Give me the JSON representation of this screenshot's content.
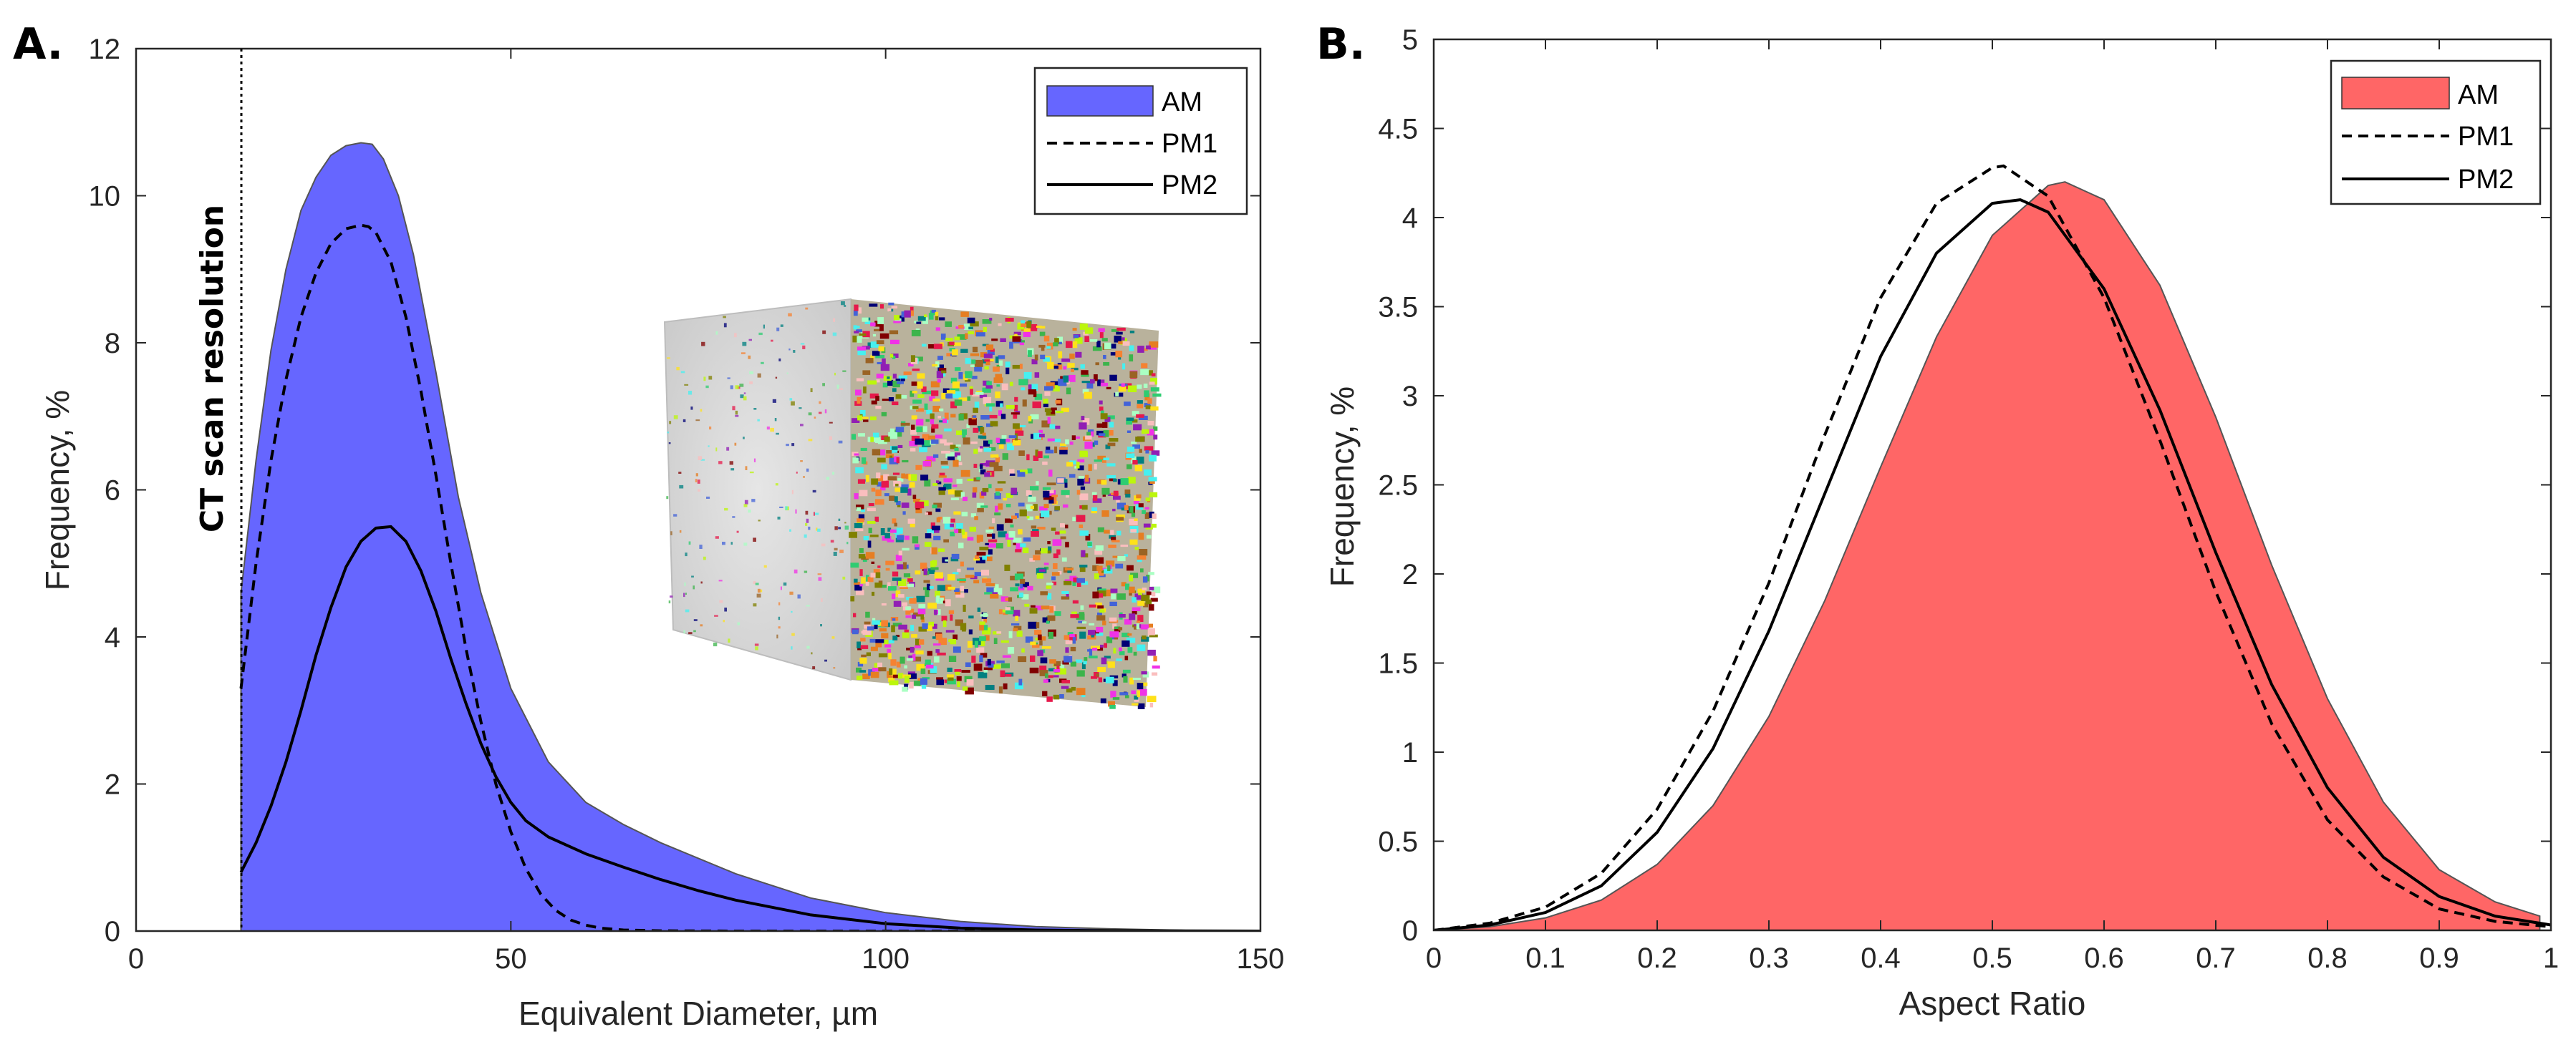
{
  "chart_data": [
    {
      "panel": "A.",
      "type": "area",
      "xlabel": "Equivalent Diameter, µm",
      "ylabel": "Frequency, %",
      "xlim": [
        0,
        150
      ],
      "ylim": [
        0,
        12
      ],
      "xticks": [
        0,
        50,
        100,
        150
      ],
      "yticks": [
        0,
        2,
        4,
        6,
        8,
        10,
        12
      ],
      "annotation": {
        "text": "CT scan resolution",
        "x": 14
      },
      "inset": "3D pore volume rendering",
      "legend": {
        "location": "top-right",
        "entries": [
          "AM",
          "PM1",
          "PM2"
        ]
      },
      "series": [
        {
          "name": "AM",
          "style": "filled area",
          "color": "#6666ff",
          "x": [
            14,
            16,
            18,
            20,
            22,
            24,
            26,
            28,
            30,
            31.5,
            33,
            35,
            37,
            40,
            43,
            46,
            50,
            55,
            60,
            65,
            70,
            80,
            90,
            100,
            110,
            120,
            130,
            140,
            150
          ],
          "y": [
            4.6,
            6.4,
            7.9,
            9.0,
            9.8,
            10.25,
            10.55,
            10.68,
            10.72,
            10.7,
            10.5,
            10.0,
            9.2,
            7.6,
            5.9,
            4.6,
            3.3,
            2.3,
            1.75,
            1.45,
            1.2,
            0.78,
            0.45,
            0.25,
            0.13,
            0.06,
            0.03,
            0.01,
            0.0
          ]
        },
        {
          "name": "PM1",
          "style": "dashed",
          "color": "#000000",
          "x": [
            14,
            16,
            18,
            20,
            22,
            24,
            26,
            28,
            30,
            31,
            32,
            34,
            36,
            38,
            40,
            42,
            44,
            46,
            48,
            50,
            52,
            54,
            56,
            58,
            60,
            62,
            65,
            70,
            80,
            100,
            150
          ],
          "y": [
            3.3,
            5.0,
            6.4,
            7.5,
            8.35,
            8.95,
            9.35,
            9.55,
            9.6,
            9.58,
            9.5,
            9.1,
            8.35,
            7.35,
            6.2,
            5.0,
            3.85,
            2.85,
            2.0,
            1.35,
            0.85,
            0.5,
            0.28,
            0.15,
            0.08,
            0.04,
            0.015,
            0.004,
            0.0,
            0.0,
            0.0
          ]
        },
        {
          "name": "PM2",
          "style": "solid",
          "color": "#000000",
          "x": [
            14,
            16,
            18,
            20,
            22,
            24,
            26,
            28,
            30,
            32,
            34,
            36,
            38,
            40,
            42,
            44,
            46,
            48,
            50,
            52,
            55,
            60,
            65,
            70,
            75,
            80,
            90,
            100,
            110,
            120,
            130,
            150
          ],
          "y": [
            0.8,
            1.2,
            1.7,
            2.3,
            3.0,
            3.75,
            4.4,
            4.95,
            5.3,
            5.48,
            5.5,
            5.3,
            4.9,
            4.35,
            3.7,
            3.1,
            2.55,
            2.1,
            1.75,
            1.5,
            1.28,
            1.05,
            0.87,
            0.7,
            0.55,
            0.42,
            0.22,
            0.1,
            0.04,
            0.015,
            0.005,
            0.0
          ]
        }
      ]
    },
    {
      "panel": "B.",
      "type": "area",
      "xlabel": "Aspect Ratio",
      "ylabel": "Frequency, %",
      "xlim": [
        0,
        1
      ],
      "ylim": [
        0,
        5
      ],
      "xticks": [
        0,
        0.1,
        0.2,
        0.3,
        0.4,
        0.5,
        0.6,
        0.7,
        0.8,
        0.9,
        1
      ],
      "yticks": [
        0,
        0.5,
        1,
        1.5,
        2,
        2.5,
        3,
        3.5,
        4,
        4.5,
        5
      ],
      "legend": {
        "location": "top-right",
        "entries": [
          "AM",
          "PM1",
          "PM2"
        ]
      },
      "series": [
        {
          "name": "AM",
          "style": "filled area",
          "color": "#ff6666",
          "x": [
            0,
            0.05,
            0.1,
            0.15,
            0.2,
            0.25,
            0.3,
            0.35,
            0.4,
            0.45,
            0.5,
            0.55,
            0.565,
            0.6,
            0.65,
            0.7,
            0.75,
            0.8,
            0.85,
            0.9,
            0.95,
            0.99
          ],
          "y": [
            0.0,
            0.02,
            0.07,
            0.17,
            0.37,
            0.7,
            1.2,
            1.85,
            2.6,
            3.33,
            3.9,
            4.18,
            4.2,
            4.1,
            3.62,
            2.88,
            2.05,
            1.3,
            0.72,
            0.34,
            0.16,
            0.08
          ]
        },
        {
          "name": "PM1",
          "style": "dashed",
          "color": "#000000",
          "x": [
            0,
            0.05,
            0.1,
            0.15,
            0.2,
            0.25,
            0.3,
            0.35,
            0.4,
            0.45,
            0.5,
            0.51,
            0.55,
            0.6,
            0.65,
            0.7,
            0.75,
            0.8,
            0.85,
            0.9,
            0.95,
            1.0
          ],
          "y": [
            0.0,
            0.04,
            0.13,
            0.32,
            0.68,
            1.23,
            1.95,
            2.78,
            3.55,
            4.08,
            4.28,
            4.29,
            4.12,
            3.55,
            2.75,
            1.9,
            1.16,
            0.62,
            0.3,
            0.12,
            0.05,
            0.02
          ]
        },
        {
          "name": "PM2",
          "style": "solid",
          "color": "#000000",
          "x": [
            0,
            0.05,
            0.1,
            0.15,
            0.2,
            0.25,
            0.3,
            0.35,
            0.4,
            0.45,
            0.5,
            0.525,
            0.55,
            0.6,
            0.65,
            0.7,
            0.75,
            0.8,
            0.85,
            0.9,
            0.95,
            1.0
          ],
          "y": [
            0.0,
            0.03,
            0.1,
            0.25,
            0.55,
            1.02,
            1.68,
            2.45,
            3.22,
            3.8,
            4.08,
            4.1,
            4.03,
            3.6,
            2.92,
            2.12,
            1.38,
            0.8,
            0.41,
            0.19,
            0.08,
            0.03
          ]
        }
      ]
    }
  ]
}
